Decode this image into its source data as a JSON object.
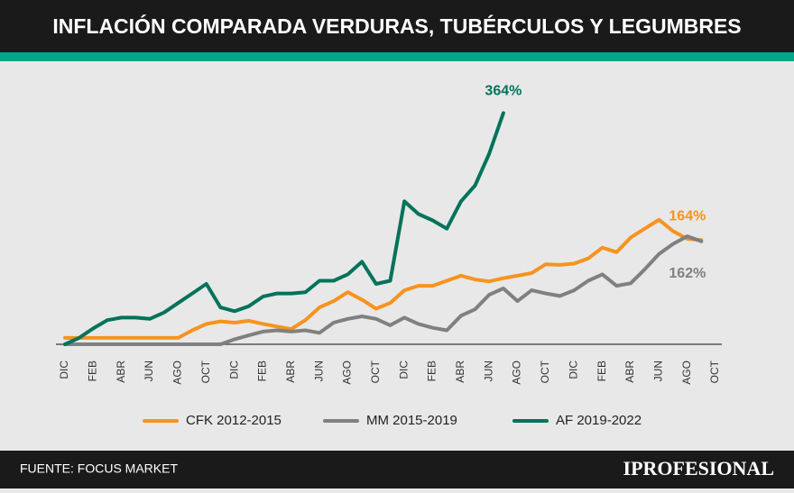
{
  "chart_data": {
    "type": "line",
    "title": "INFLACIÓN COMPARADA VERDURAS, TUBÉRCULOS Y LEGUMBRES",
    "source": "FUENTE: FOCUS MARKET",
    "brand": "IPROFESIONAL",
    "categories": [
      "DIC",
      null,
      "FEB",
      null,
      "ABR",
      null,
      "JUN",
      null,
      "AGO",
      null,
      "OCT",
      null,
      "DIC",
      null,
      "FEB",
      null,
      "ABR",
      null,
      "JUN",
      null,
      "AGO",
      null,
      "OCT",
      null,
      "DIC",
      null,
      "FEB",
      null,
      "ABR",
      null,
      "JUN",
      null,
      "AGO",
      null,
      "OCT",
      null,
      "DIC",
      null,
      "FEB",
      null,
      "ABR",
      null,
      "JUN",
      null,
      "AGO",
      null,
      "OCT"
    ],
    "ylim": [
      0,
      400
    ],
    "legend": "bottom",
    "series": [
      {
        "name": "CFK 2012-2015",
        "color": "#f7931e",
        "values": [
          10,
          10,
          10,
          10,
          10,
          10,
          10,
          10,
          10,
          22,
          32,
          36,
          34,
          37,
          32,
          28,
          24,
          38,
          58,
          68,
          82,
          70,
          56,
          65,
          85,
          92,
          92,
          100,
          108,
          102,
          99,
          104,
          108,
          112,
          126,
          125,
          127,
          135,
          152,
          145,
          168,
          182,
          196,
          178,
          166,
          164,
          null
        ],
        "value_labels": [
          null,
          null,
          null,
          null,
          null,
          null,
          null,
          null,
          null,
          null,
          null,
          null,
          null,
          null,
          null,
          null,
          null,
          null,
          null,
          null,
          null,
          null,
          null,
          null,
          null,
          null,
          null,
          null,
          null,
          null,
          null,
          null,
          null,
          null,
          null,
          null,
          null,
          null,
          null,
          null,
          null,
          null,
          null,
          null,
          null,
          "164%",
          null
        ]
      },
      {
        "name": "MM 2015-2019",
        "color": "#808080",
        "values": [
          0,
          0,
          0,
          0,
          0,
          0,
          0,
          0,
          0,
          0,
          0,
          0,
          8,
          14,
          20,
          22,
          20,
          22,
          18,
          34,
          40,
          44,
          40,
          30,
          42,
          32,
          26,
          22,
          45,
          55,
          78,
          88,
          68,
          85,
          80,
          76,
          85,
          100,
          110,
          92,
          96,
          118,
          142,
          158,
          170,
          162,
          null
        ],
        "value_labels": [
          null,
          null,
          null,
          null,
          null,
          null,
          null,
          null,
          null,
          null,
          null,
          null,
          null,
          null,
          null,
          null,
          null,
          null,
          null,
          null,
          null,
          null,
          null,
          null,
          null,
          null,
          null,
          null,
          null,
          null,
          null,
          null,
          null,
          null,
          null,
          null,
          null,
          null,
          null,
          null,
          null,
          null,
          null,
          null,
          null,
          "162%",
          null
        ]
      },
      {
        "name": "AF 2019-2022",
        "color": "#00735a",
        "values": [
          0,
          10,
          25,
          38,
          42,
          42,
          40,
          50,
          65,
          80,
          95,
          58,
          52,
          60,
          75,
          80,
          80,
          82,
          100,
          100,
          110,
          130,
          95,
          100,
          225,
          205,
          195,
          182,
          225,
          250,
          300,
          364,
          null,
          null,
          null,
          null,
          null,
          null,
          null,
          null,
          null,
          null,
          null,
          null,
          null,
          null,
          null
        ],
        "value_labels": [
          null,
          null,
          null,
          null,
          null,
          null,
          null,
          null,
          null,
          null,
          null,
          null,
          null,
          null,
          null,
          null,
          null,
          null,
          null,
          null,
          null,
          null,
          null,
          null,
          null,
          null,
          null,
          null,
          null,
          null,
          null,
          "364%",
          null,
          null,
          null,
          null,
          null,
          null,
          null,
          null,
          null,
          null,
          null,
          null,
          null,
          null,
          null
        ]
      }
    ]
  }
}
